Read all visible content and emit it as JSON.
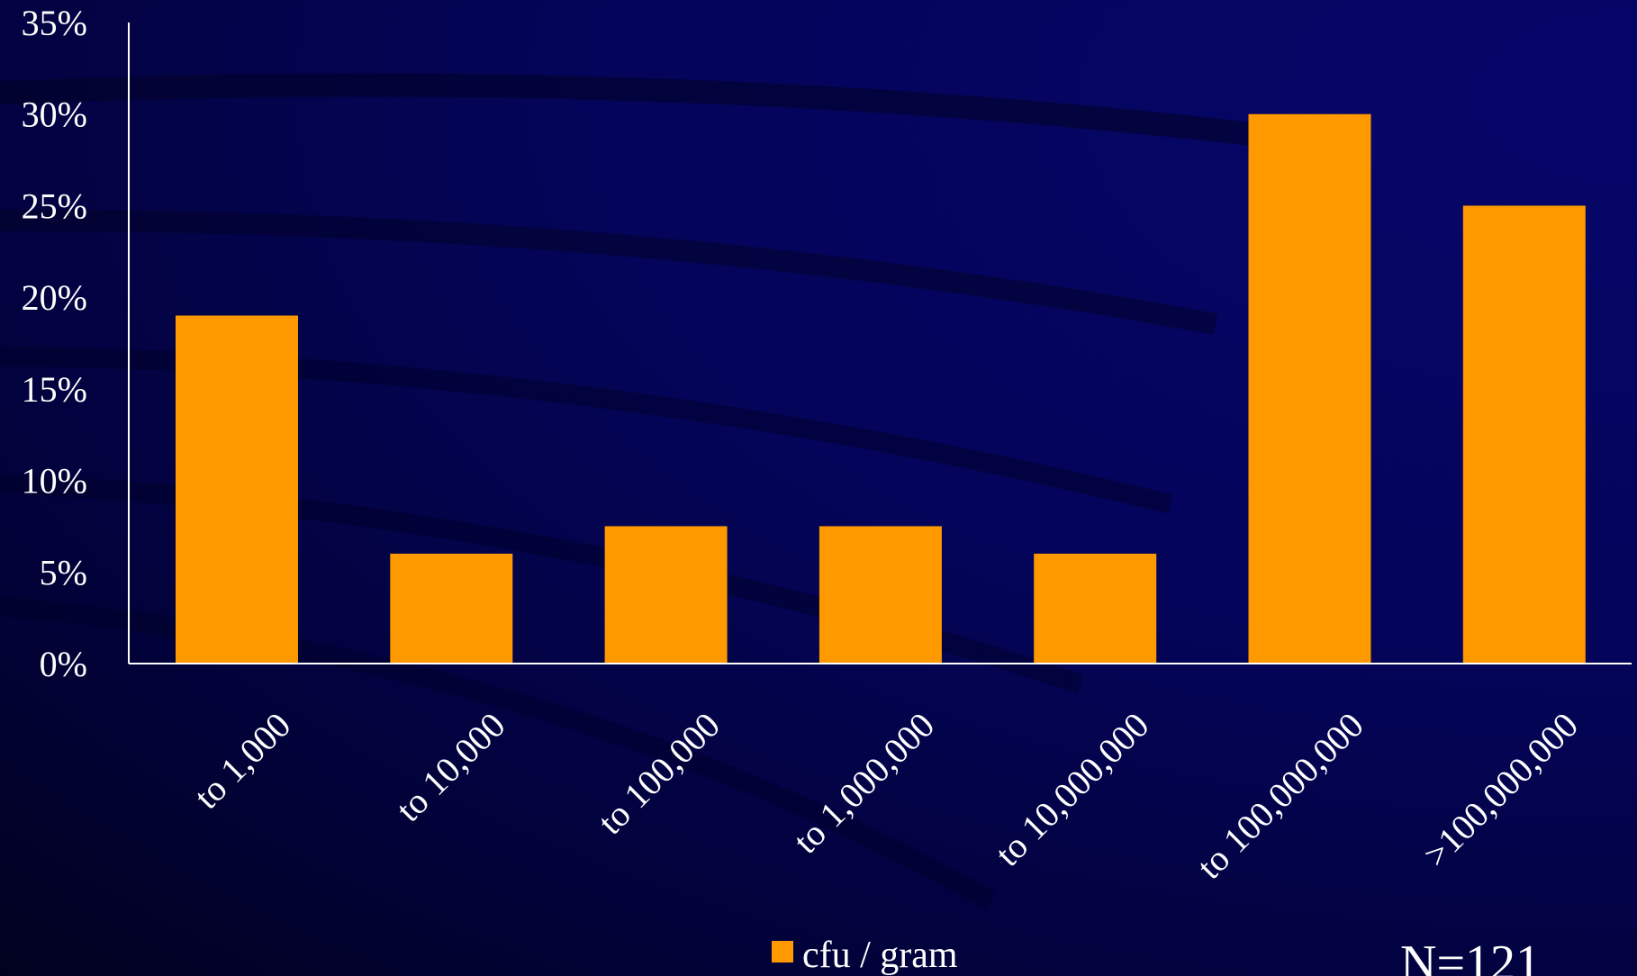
{
  "chart_data": {
    "type": "bar",
    "categories": [
      "to 1,000",
      "to 10,000",
      "to 100,000",
      "to 1,000,000",
      "to 10,000,000",
      "to 100,000,000",
      ">100,000,000"
    ],
    "series": [
      {
        "name": "cfu / gram",
        "values": [
          19,
          6,
          7.5,
          7.5,
          6,
          30,
          25
        ]
      }
    ],
    "ylim": [
      0,
      35
    ],
    "yticks": [
      "0%",
      "5%",
      "10%",
      "15%",
      "20%",
      "25%",
      "30%",
      "35%"
    ],
    "y_unit": "percent",
    "legend_position": "bottom",
    "grid": false,
    "bar_color": "#ff9900",
    "axis_color": "#ffffff",
    "annotation": "N=121"
  }
}
